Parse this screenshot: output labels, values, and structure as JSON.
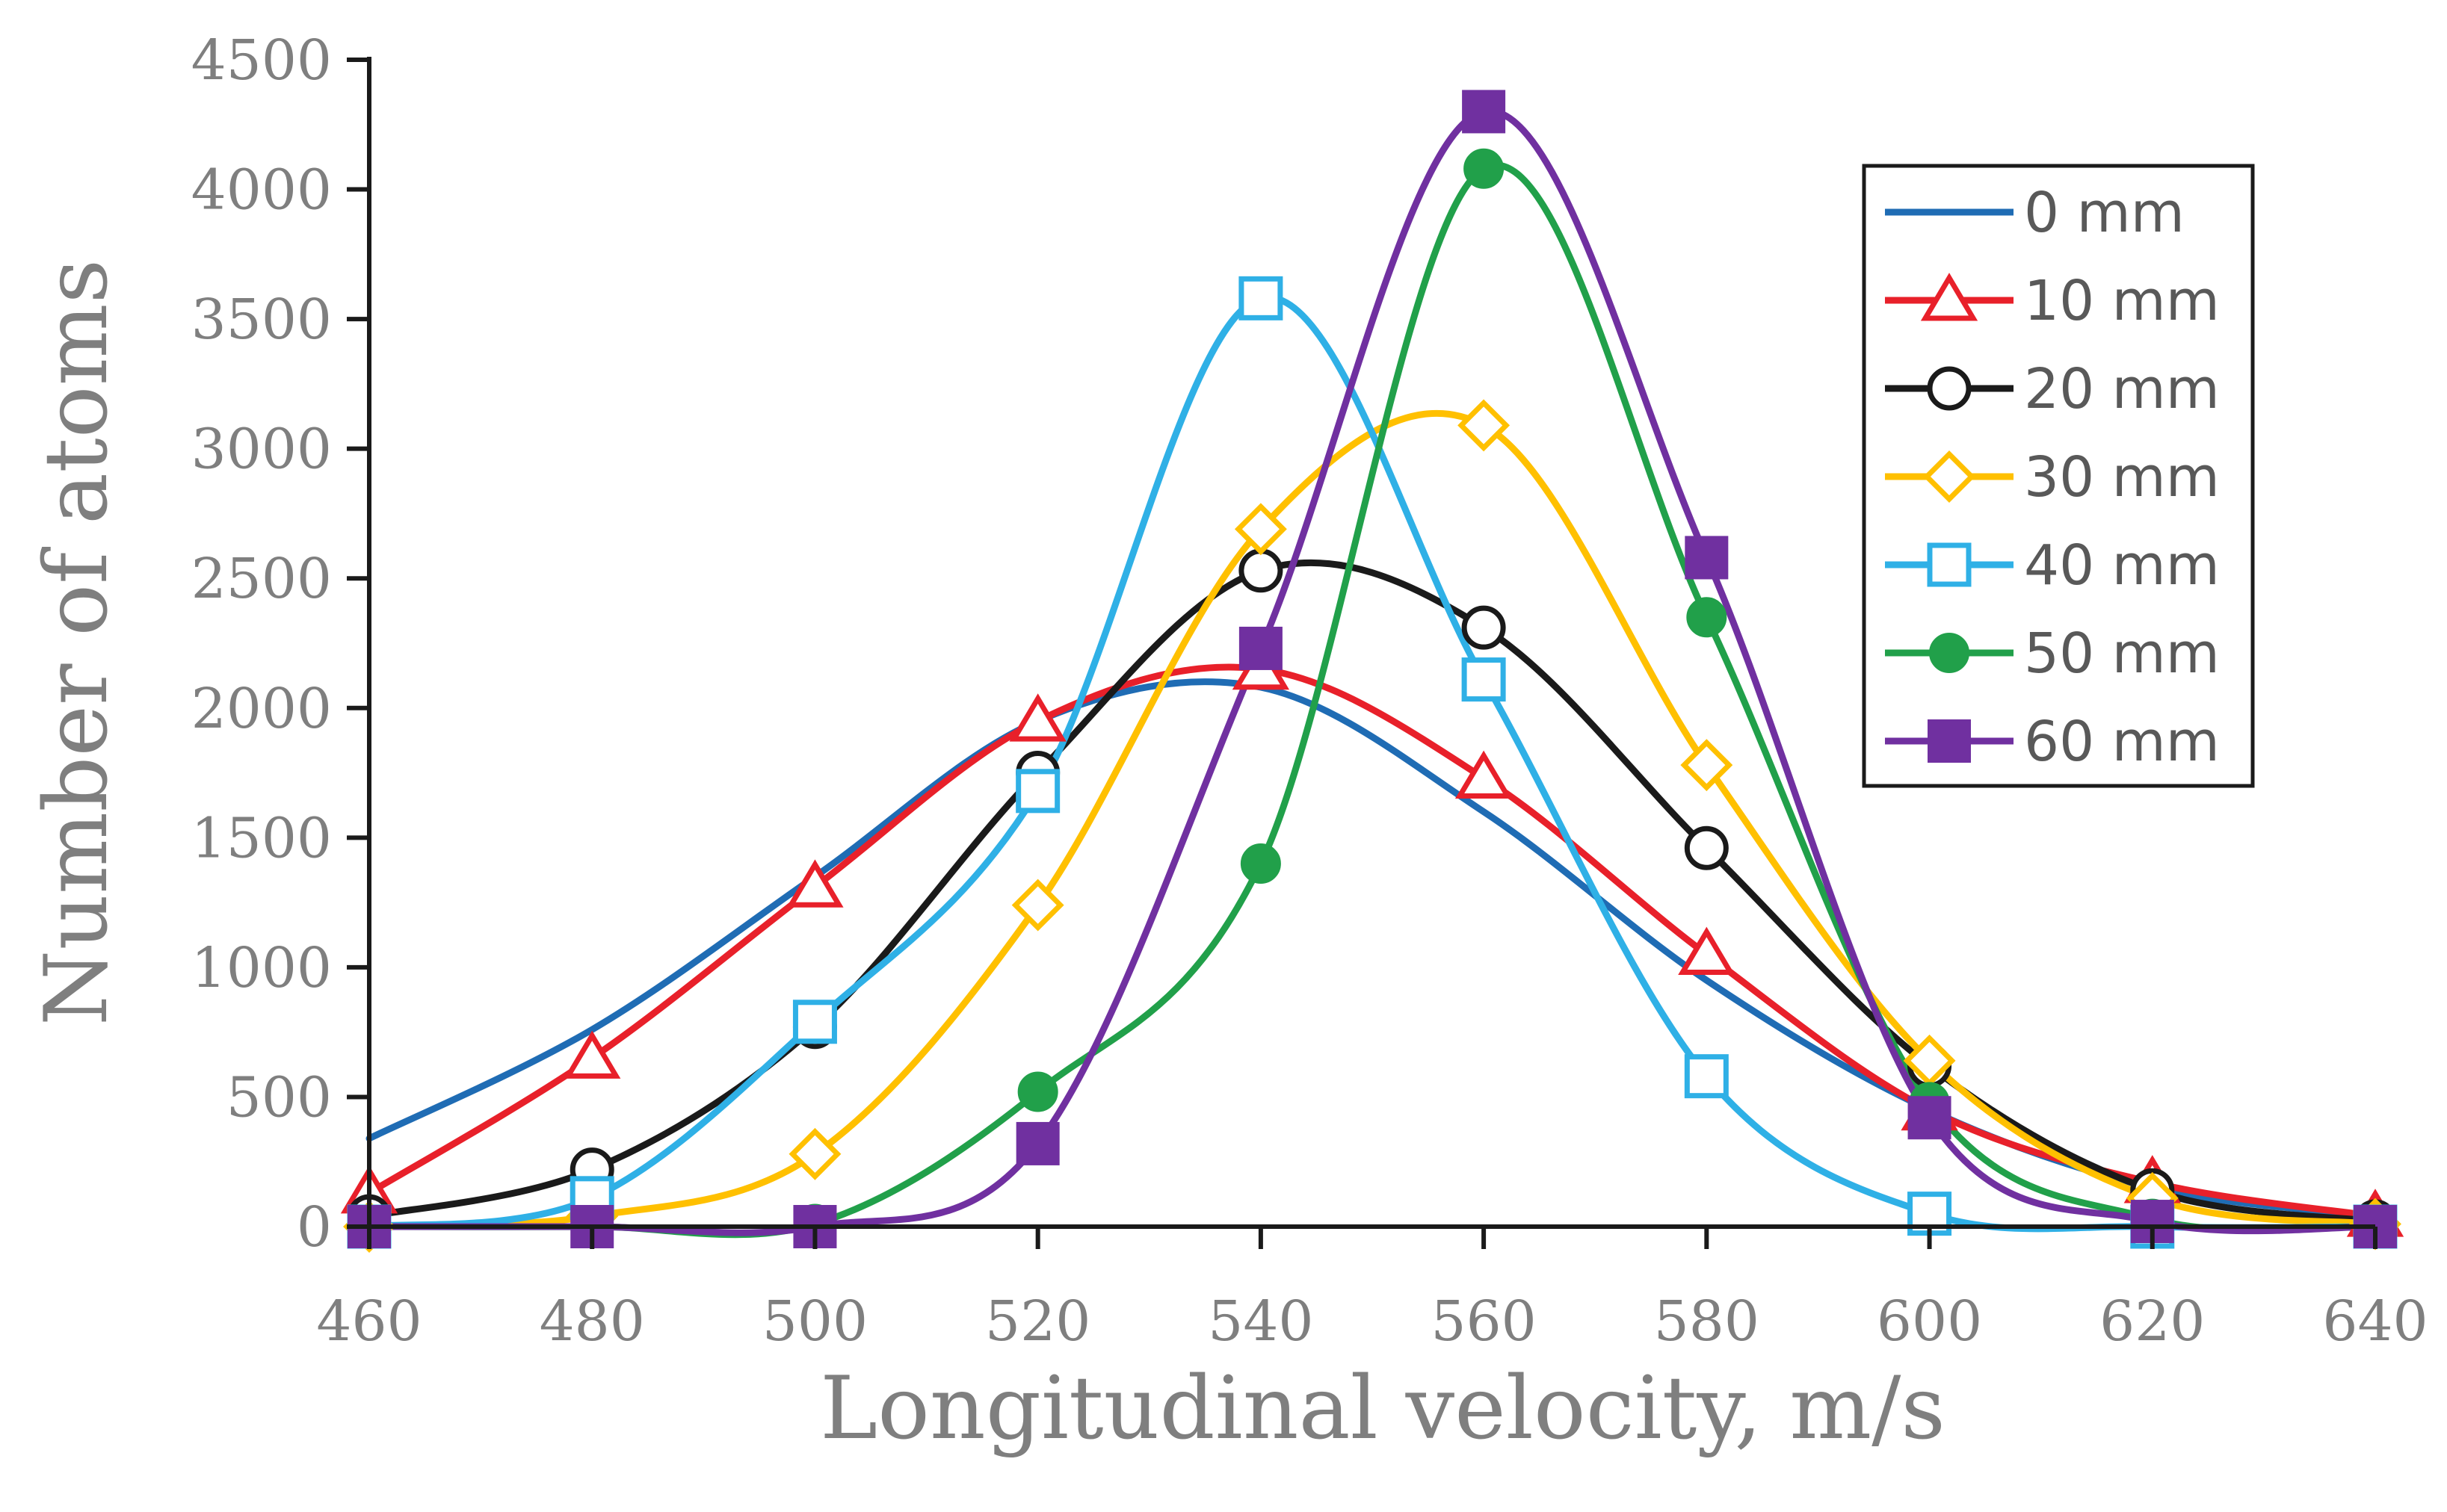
{
  "chart_data": {
    "type": "line",
    "title": "",
    "xlabel": "Longitudinal velocity,  m/s",
    "ylabel": "Number of atoms",
    "xlim": [
      460,
      640
    ],
    "ylim": [
      0,
      4500
    ],
    "xticks": [
      460,
      480,
      500,
      520,
      540,
      560,
      580,
      600,
      620,
      640
    ],
    "yticks": [
      0,
      500,
      1000,
      1500,
      2000,
      2500,
      3000,
      3500,
      4000,
      4500
    ],
    "grid": false,
    "legend_position": "top-right",
    "x": [
      460,
      480,
      500,
      520,
      540,
      560,
      580,
      600,
      620,
      640
    ],
    "series": [
      {
        "name": "0 mm",
        "color": "#1f6cb4",
        "marker": "none",
        "values": [
          340,
          760,
          1350,
          1950,
          2080,
          1600,
          950,
          450,
          150,
          40
        ]
      },
      {
        "name": "10 mm",
        "color": "#e8202a",
        "marker": "triangle",
        "values": [
          130,
          650,
          1310,
          1950,
          2150,
          1730,
          1050,
          450,
          170,
          40
        ]
      },
      {
        "name": "20 mm",
        "color": "#1a1a1a",
        "marker": "circle-open",
        "values": [
          40,
          220,
          770,
          1750,
          2530,
          2310,
          1460,
          620,
          140,
          20
        ]
      },
      {
        "name": "30 mm",
        "color": "#ffc000",
        "marker": "diamond",
        "values": [
          0,
          40,
          280,
          1240,
          2690,
          3090,
          1780,
          640,
          110,
          10
        ]
      },
      {
        "name": "40 mm",
        "color": "#2fb0e6",
        "marker": "square-open",
        "values": [
          0,
          110,
          790,
          1680,
          3580,
          2110,
          580,
          50,
          0,
          0
        ]
      },
      {
        "name": "50 mm",
        "color": "#21a04a",
        "marker": "circle-filled",
        "values": [
          0,
          0,
          10,
          520,
          1400,
          4080,
          2350,
          480,
          30,
          0
        ]
      },
      {
        "name": "60 mm",
        "color": "#7030a0",
        "marker": "square-filled",
        "values": [
          0,
          0,
          0,
          320,
          2230,
          4300,
          2580,
          420,
          20,
          0
        ]
      }
    ]
  }
}
